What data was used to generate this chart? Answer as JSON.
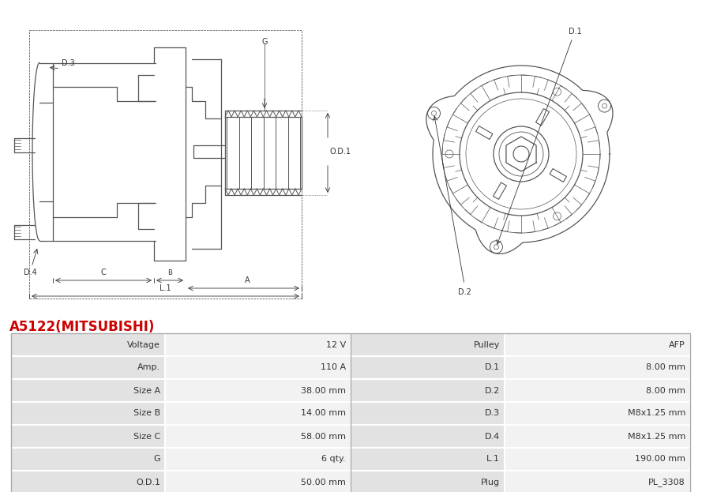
{
  "title": "A5122(MITSUBISHI)",
  "title_color": "#cc0000",
  "title_fontsize": 12,
  "bg_color": "#ffffff",
  "table_row_bg1": "#e2e2e2",
  "table_row_bg2": "#f2f2f2",
  "table_border_color": "#ffffff",
  "table_data": [
    [
      "Voltage",
      "12 V",
      "Pulley",
      "AFP"
    ],
    [
      "Amp.",
      "110 A",
      "D.1",
      "8.00 mm"
    ],
    [
      "Size A",
      "38.00 mm",
      "D.2",
      "8.00 mm"
    ],
    [
      "Size B",
      "14.00 mm",
      "D.3",
      "M8x1.25 mm"
    ],
    [
      "Size C",
      "58.00 mm",
      "D.4",
      "M8x1.25 mm"
    ],
    [
      "G",
      "6 qty.",
      "L.1",
      "190.00 mm"
    ],
    [
      "O.D.1",
      "50.00 mm",
      "Plug",
      "PL_3308"
    ]
  ],
  "line_color": "#555555",
  "dim_color": "#333333",
  "font_size_table": 8.0,
  "font_size_label": 7.0
}
